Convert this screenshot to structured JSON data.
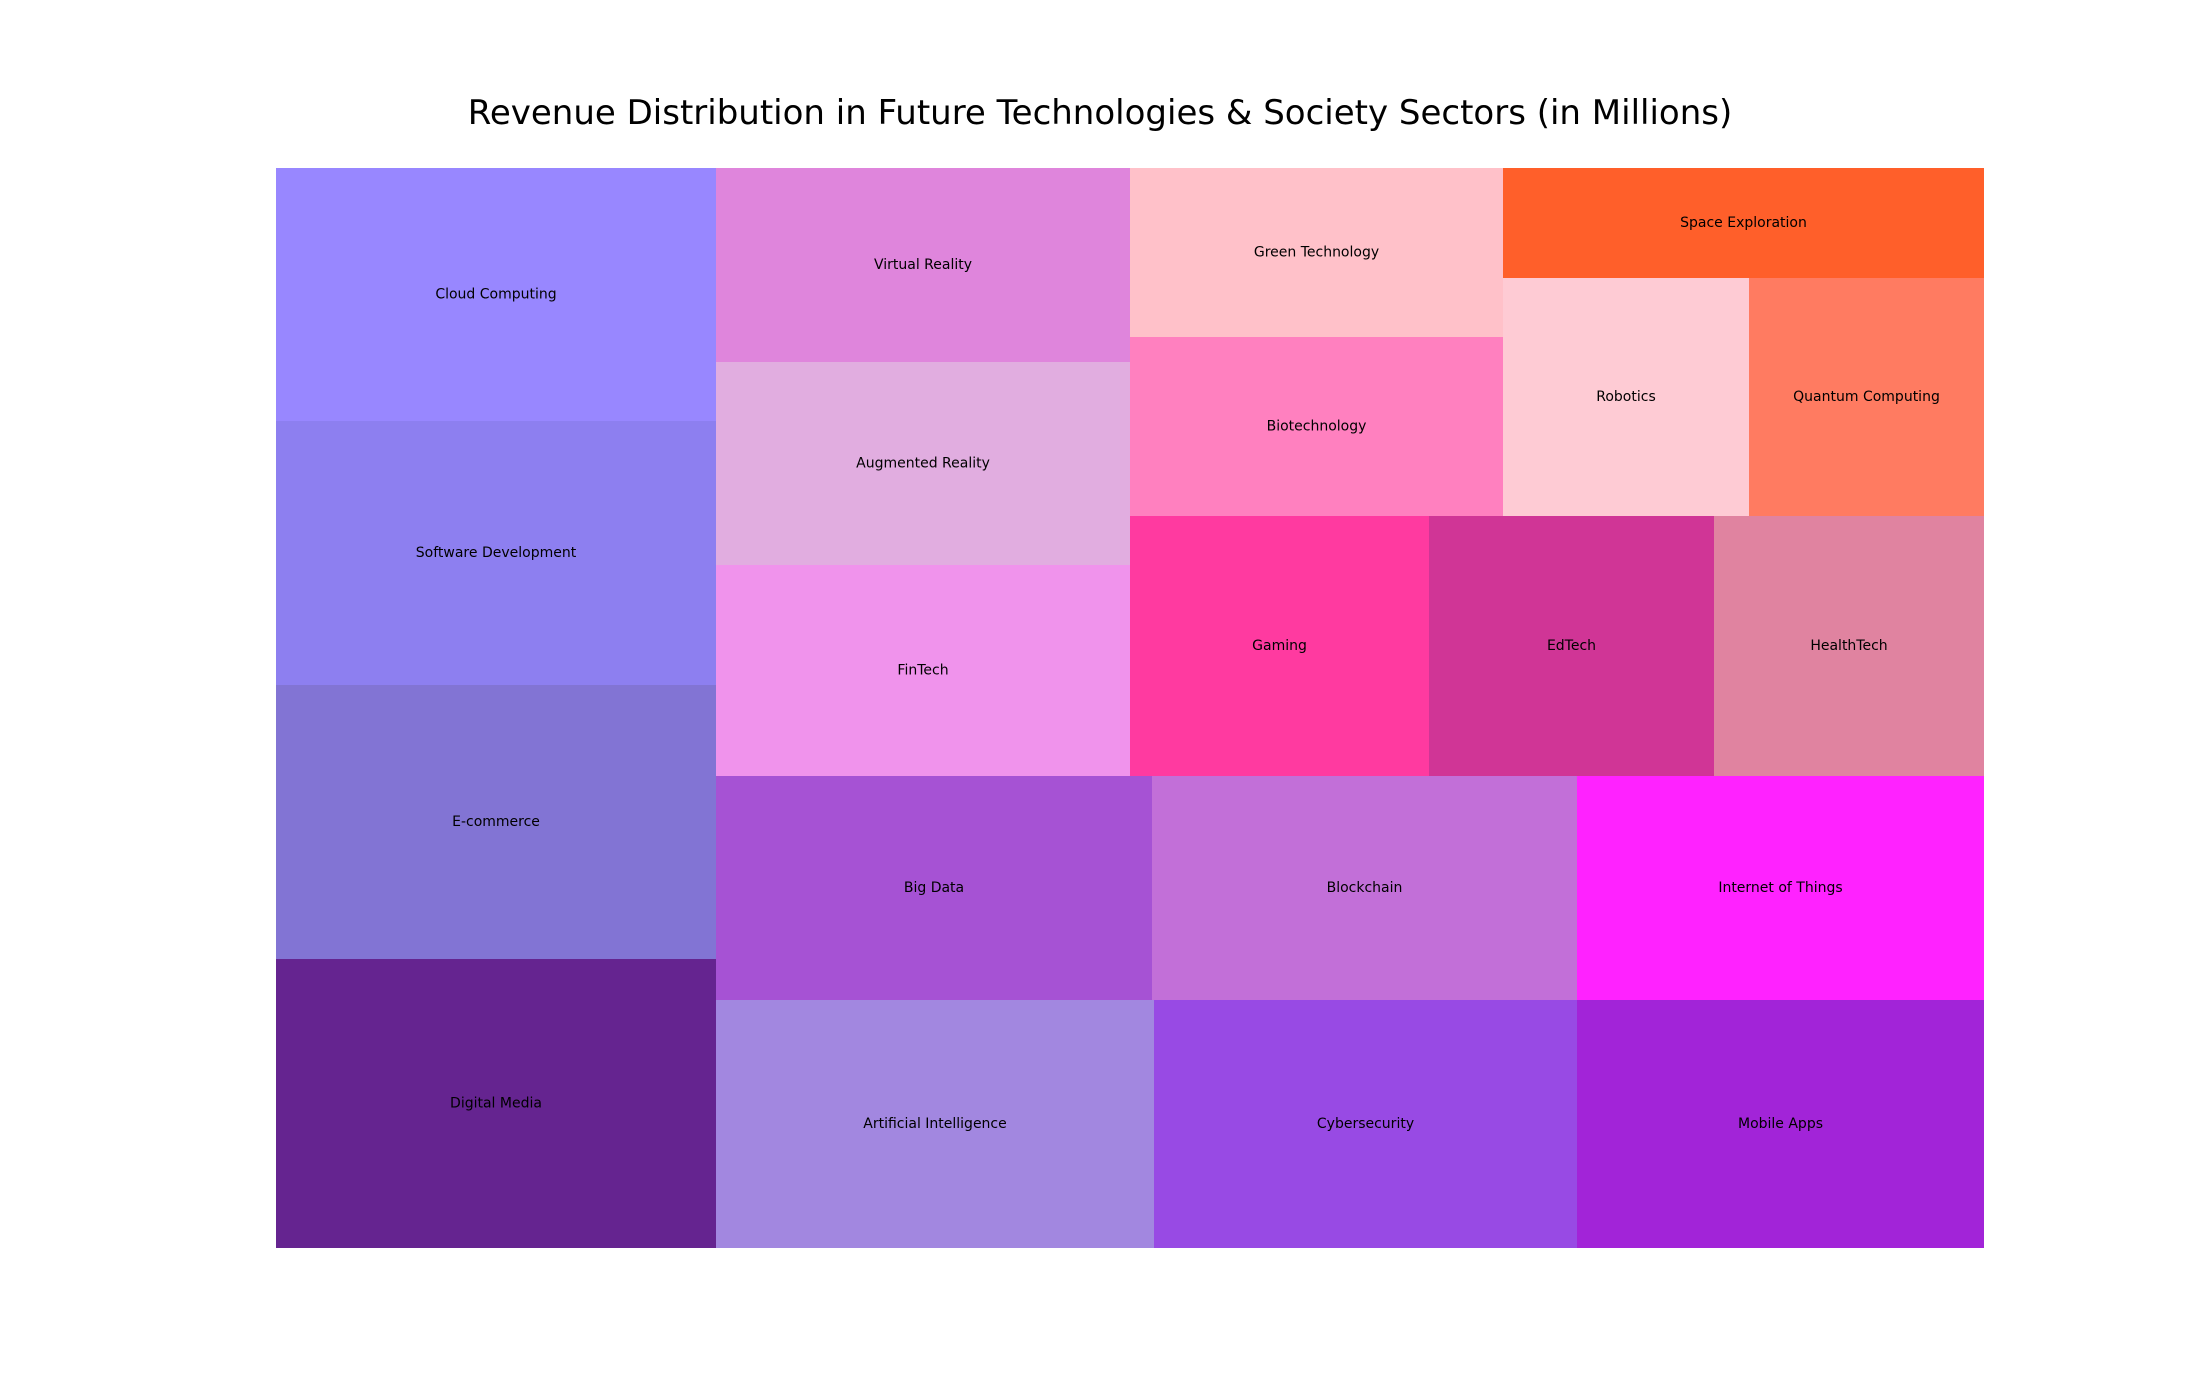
{
  "chart_data": {
    "type": "treemap",
    "title": "Revenue Distribution in Future Technologies & Society Sectors (in Millions)",
    "groups": [
      {
        "tiles": [
          {
            "label": "Cloud Computing",
            "value": 1200,
            "color": "#9887ff"
          },
          {
            "label": "Software Development",
            "value": 1250,
            "color": "#8d7ff0"
          },
          {
            "label": "E-commerce",
            "value": 1300,
            "color": "#8274d4"
          },
          {
            "label": "Digital Media",
            "value": 1370,
            "color": "#652490"
          }
        ]
      },
      {
        "tiles": [
          {
            "label": "Virtual Reality",
            "value": 650,
            "color": "#df85dc"
          },
          {
            "label": "Augmented Reality",
            "value": 680,
            "color": "#e1ade0"
          },
          {
            "label": "FinTech",
            "value": 710,
            "color": "#f093ec"
          }
        ]
      },
      {
        "tiles": [
          {
            "label": "Green Technology",
            "value": 510,
            "color": "#ffc1c9"
          },
          {
            "label": "Biotechnology",
            "value": 540,
            "color": "#ff80bf"
          }
        ]
      },
      {
        "tiles": [
          {
            "label": "Space Exploration",
            "value": 430,
            "color": "#ff5f2a"
          },
          {
            "label": "Robotics",
            "value": 470,
            "color": "#fecbd4"
          },
          {
            "label": "Quantum Computing",
            "value": 450,
            "color": "#ff7b61"
          }
        ]
      },
      {
        "tiles": [
          {
            "label": "Gaming",
            "value": 620,
            "color": "#ff3aa0"
          },
          {
            "label": "EdTech",
            "value": 590,
            "color": "#d03596"
          },
          {
            "label": "HealthTech",
            "value": 560,
            "color": "#e083a0"
          }
        ]
      },
      {
        "tiles": [
          {
            "label": "Big Data",
            "value": 780,
            "color": "#a652d4"
          },
          {
            "label": "Blockchain",
            "value": 760,
            "color": "#c26fd8"
          },
          {
            "label": "Internet of Things",
            "value": 730,
            "color": "#ff22ff"
          }
        ]
      },
      {
        "tiles": [
          {
            "label": "Artificial Intelligence",
            "value": 880,
            "color": "#a287e0"
          },
          {
            "label": "Cybersecurity",
            "value": 850,
            "color": "#984ae4"
          },
          {
            "label": "Mobile Apps",
            "value": 820,
            "color": "#a224d8"
          }
        ]
      }
    ]
  }
}
